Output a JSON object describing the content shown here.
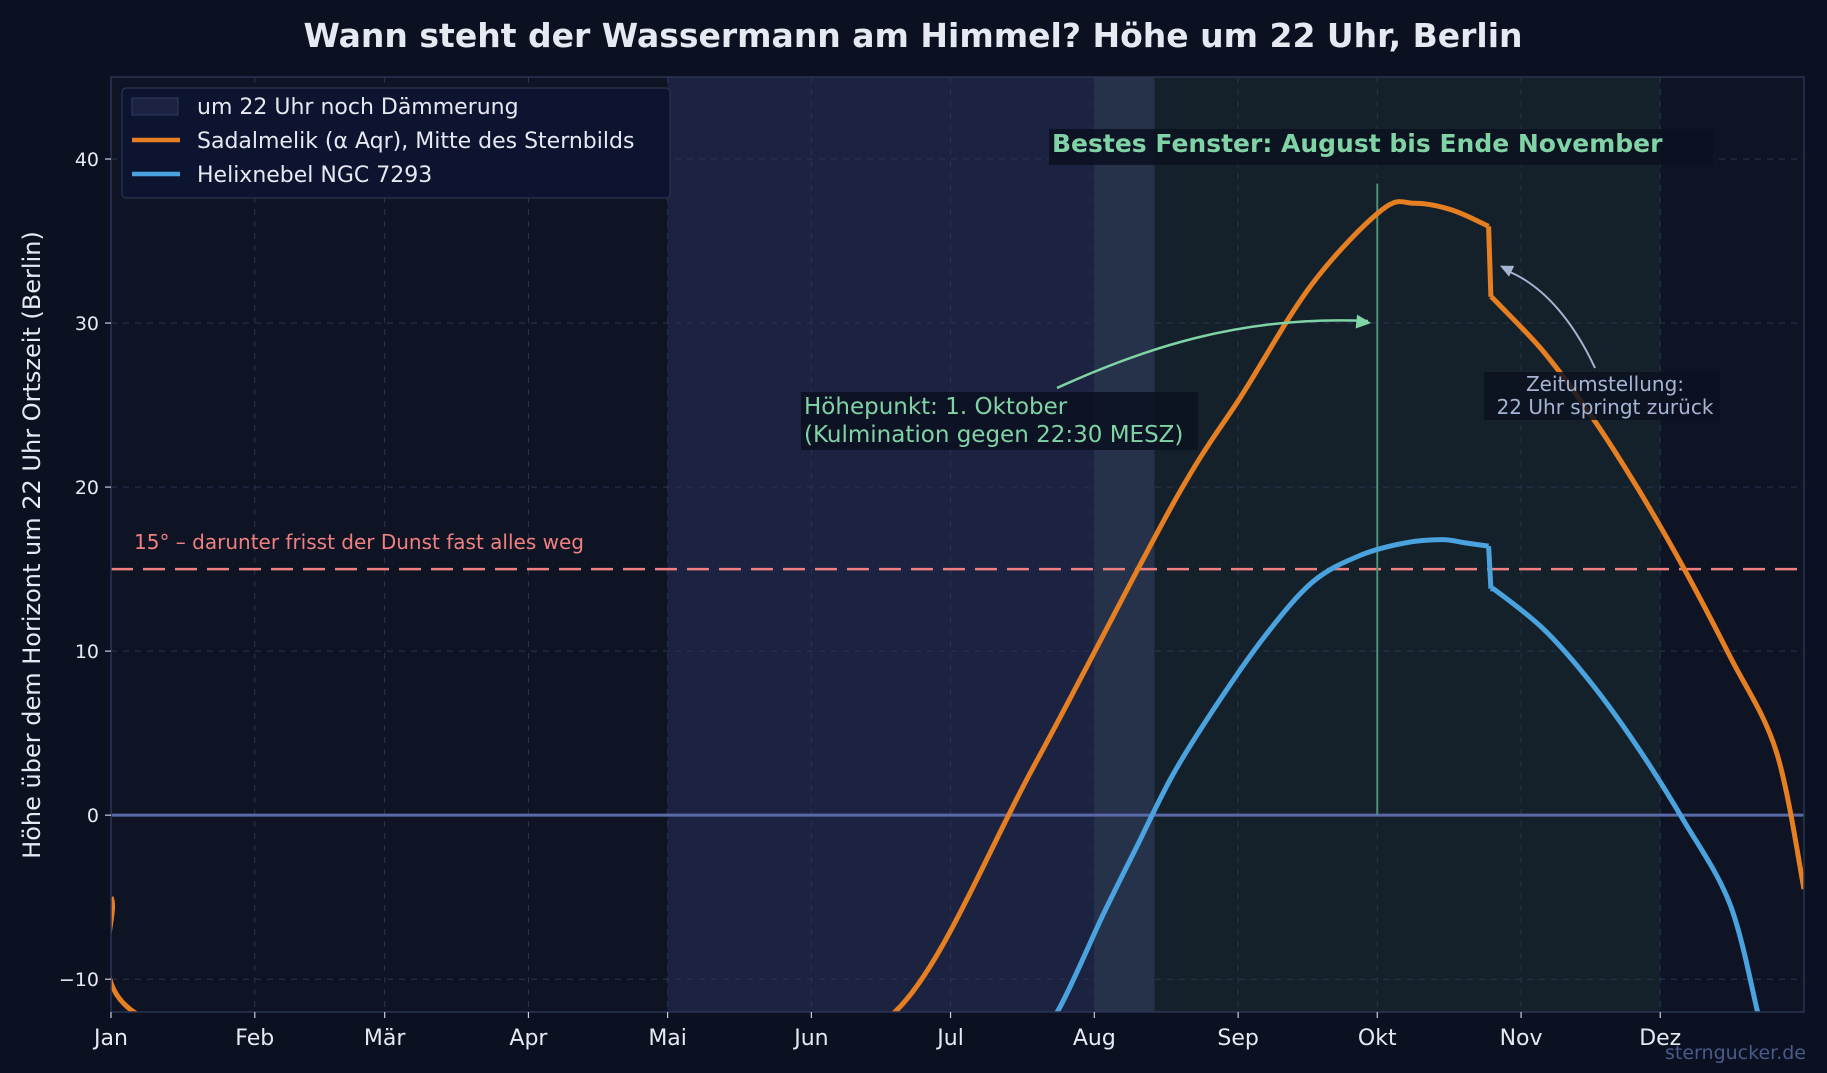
{
  "chart_data": {
    "type": "line",
    "title": "Wann steht der Wassermann am Himmel? Höhe um 22 Uhr, Berlin",
    "xlabel": "",
    "ylabel": "Höhe über dem Horizont um 22 Uhr Ortszeit (Berlin)",
    "ylim": [
      -12,
      45
    ],
    "yticks": [
      -10,
      0,
      10,
      20,
      30,
      40
    ],
    "ytick_labels": [
      "−10",
      "0",
      "10",
      "20",
      "30",
      "40"
    ],
    "xlim": [
      1,
      366
    ],
    "month_ticks": [
      {
        "label": "Jan",
        "day": 1
      },
      {
        "label": "Feb",
        "day": 32
      },
      {
        "label": "Mär",
        "day": 60
      },
      {
        "label": "Apr",
        "day": 91
      },
      {
        "label": "Mai",
        "day": 121
      },
      {
        "label": "Jun",
        "day": 152
      },
      {
        "label": "Jul",
        "day": 182
      },
      {
        "label": "Aug",
        "day": 213
      },
      {
        "label": "Sep",
        "day": 244
      },
      {
        "label": "Okt",
        "day": 274
      },
      {
        "label": "Nov",
        "day": 305
      },
      {
        "label": "Dez",
        "day": 335
      }
    ],
    "grid": true,
    "legend_position": "top-left",
    "legend": [
      {
        "label": "um 22 Uhr noch Dämmerung",
        "kind": "patch",
        "color": "#1c2340"
      },
      {
        "label": "Sadalmelik (α Aqr), Mitte des Sternbilds",
        "kind": "line",
        "color": "#e67e22"
      },
      {
        "label": "Helixnebel NGC 7293",
        "kind": "line",
        "color": "#4aa3df"
      }
    ],
    "series": [
      {
        "name": "Sadalmelik (α Aqr), Mitte des Sternbilds",
        "color": "#e67e22",
        "x": [
          1,
          15,
          140,
          170,
          200,
          230,
          245,
          260,
          275,
          282,
          290,
          298,
          298.5,
          300,
          310,
          320,
          330,
          340,
          350,
          360,
          366
        ],
        "y": [
          -5,
          -13,
          -13,
          -12,
          3,
          19,
          25.7,
          32.4,
          36.9,
          37.3,
          36.9,
          35.9,
          31.6,
          31.2,
          28.2,
          24.4,
          20.0,
          15.1,
          9.7,
          3.9,
          -4.5
        ]
      },
      {
        "name": "Helixnebel NGC 7293",
        "color": "#4aa3df",
        "x": [
          200,
          205,
          215,
          222,
          230,
          240,
          250,
          260,
          270,
          280,
          288,
          293,
          298,
          298.5,
          300,
          310,
          320,
          330,
          340,
          350,
          356
        ],
        "y": [
          -13,
          -12,
          -6,
          -2,
          2.5,
          7.0,
          11.0,
          14.2,
          15.8,
          16.6,
          16.8,
          16.6,
          16.4,
          13.8,
          13.6,
          11.3,
          8.1,
          4.2,
          -0.3,
          -5.4,
          -12
        ]
      }
    ],
    "bands": [
      {
        "name": "twilight",
        "from": 121,
        "to": 226,
        "color": "#1c2340"
      },
      {
        "name": "twilight-fade",
        "from": 213,
        "to": 226,
        "color": "#25324a"
      },
      {
        "name": "best-window",
        "from": 226,
        "to": 335,
        "color": "#14212a"
      }
    ],
    "reference_lines": [
      {
        "y": 15,
        "color": "#f08080",
        "style": "dashed",
        "label": "15° – darunter frisst der Dunst fast alles weg"
      },
      {
        "y": 0,
        "color": "#5a6aa8",
        "style": "solid",
        "label": ""
      }
    ],
    "vline": {
      "x": 274,
      "color": "#4e8f78"
    },
    "annotations": {
      "peak": {
        "lines": [
          "Höhepunkt: 1. Oktober",
          "(Kulmination gegen 22:30 MESZ)"
        ],
        "color": "#7fd3a5",
        "arrow_to": {
          "x": 274,
          "y": 30
        }
      },
      "dst": {
        "lines": [
          "Zeitumstellung:",
          "22 Uhr springt zurück"
        ],
        "color": "#a6b4d3",
        "arrow_to": {
          "x": 300,
          "y": 33.5
        }
      },
      "best": {
        "label": "Bestes Fenster: August bis Ende November",
        "color": "#7fd3a5"
      }
    },
    "watermark": "sterngucker.de"
  }
}
